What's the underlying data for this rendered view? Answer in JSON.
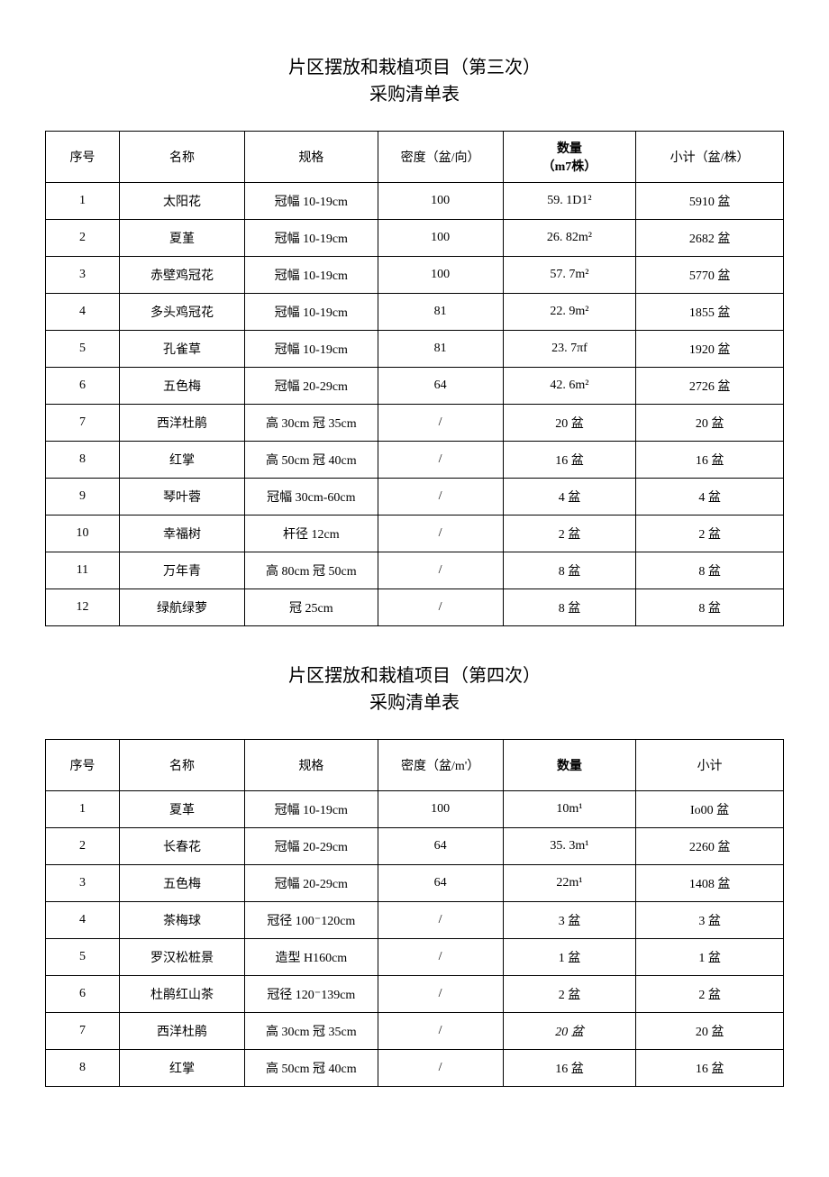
{
  "table1": {
    "title_line1": "片区摆放和栽植项目（第三次）",
    "title_line2": "采购清单表",
    "headers": {
      "seq": "序号",
      "name": "名称",
      "spec": "规格",
      "density": "密度（盆/向）",
      "qty_line1": "数量",
      "qty_line2": "（m7株）",
      "subtotal": "小计（盆/株）"
    },
    "rows": [
      {
        "seq": "1",
        "name": "太阳花",
        "spec": "冠幅 10-19cm",
        "density": "100",
        "qty": "59. 1D1²",
        "subtotal": "5910 盆"
      },
      {
        "seq": "2",
        "name": "夏堇",
        "spec": "冠幅 10-19cm",
        "density": "100",
        "qty": "26. 82m²",
        "subtotal": "2682 盆"
      },
      {
        "seq": "3",
        "name": "赤壁鸡冠花",
        "spec": "冠幅 10-19cm",
        "density": "100",
        "qty": "57. 7m²",
        "subtotal": "5770 盆"
      },
      {
        "seq": "4",
        "name": "多头鸡冠花",
        "spec": "冠幅 10-19cm",
        "density": "81",
        "qty": "22. 9m²",
        "subtotal": "1855 盆"
      },
      {
        "seq": "5",
        "name": "孔雀草",
        "spec": "冠幅 10-19cm",
        "density": "81",
        "qty": "23. 7πf",
        "subtotal": "1920 盆"
      },
      {
        "seq": "6",
        "name": "五色梅",
        "spec": "冠幅 20-29cm",
        "density": "64",
        "qty": "42. 6m²",
        "subtotal": "2726 盆"
      },
      {
        "seq": "7",
        "name": "西洋杜鹃",
        "spec": "高 30cm 冠 35cm",
        "density": "/",
        "qty": "20 盆",
        "subtotal": "20 盆"
      },
      {
        "seq": "8",
        "name": "红掌",
        "spec": "高 50cm 冠 40cm",
        "density": "/",
        "qty": "16 盆",
        "subtotal": "16 盆"
      },
      {
        "seq": "9",
        "name": "琴叶蓉",
        "spec": "冠幅 30cm-60cm",
        "density": "/",
        "qty": "4 盆",
        "subtotal": "4 盆"
      },
      {
        "seq": "10",
        "name": "幸福树",
        "spec": "杆径 12cm",
        "density": "/",
        "qty": "2 盆",
        "subtotal": "2 盆"
      },
      {
        "seq": "11",
        "name": "万年青",
        "spec": "高 80cm 冠 50cm",
        "density": "/",
        "qty": "8 盆",
        "subtotal": "8 盆"
      },
      {
        "seq": "12",
        "name": "绿航绿萝",
        "spec": "冠 25cm",
        "density": "/",
        "qty": "8 盆",
        "subtotal": "8 盆"
      }
    ]
  },
  "table2": {
    "title_line1": "片区摆放和栽植项目（第四次）",
    "title_line2": "采购清单表",
    "headers": {
      "seq": "序号",
      "name": "名称",
      "spec": "规格",
      "density": "密度（盆/m'）",
      "qty": "数量",
      "subtotal": "小计"
    },
    "rows": [
      {
        "seq": "1",
        "name": "夏革",
        "spec": "冠幅 10-19cm",
        "density": "100",
        "qty": "10m¹",
        "subtotal": "Io00 盆",
        "italic": false
      },
      {
        "seq": "2",
        "name": "长春花",
        "spec": "冠幅 20-29cm",
        "density": "64",
        "qty": "35. 3m¹",
        "subtotal": "2260 盆",
        "italic": false
      },
      {
        "seq": "3",
        "name": "五色梅",
        "spec": "冠幅 20-29cm",
        "density": "64",
        "qty": "22m¹",
        "subtotal": "1408 盆",
        "italic": false
      },
      {
        "seq": "4",
        "name": "茶梅球",
        "spec": "冠径 100⁻120cm",
        "density": "/",
        "qty": "3 盆",
        "subtotal": "3 盆",
        "italic": false
      },
      {
        "seq": "5",
        "name": "罗汉松桩景",
        "spec": "造型 H160cm",
        "density": "/",
        "qty": "1 盆",
        "subtotal": "1 盆",
        "italic": false
      },
      {
        "seq": "6",
        "name": "杜鹃红山茶",
        "spec": "冠径 120⁻139cm",
        "density": "/",
        "qty": "2 盆",
        "subtotal": "2 盆",
        "italic": false
      },
      {
        "seq": "7",
        "name": "西洋杜鹃",
        "spec": "高 30cm 冠 35cm",
        "density": "/",
        "qty": "20 盆",
        "subtotal": "20 盆",
        "italic": true
      },
      {
        "seq": "8",
        "name": "红掌",
        "spec": "高 50cm 冠 40cm",
        "density": "/",
        "qty": "16 盆",
        "subtotal": "16 盆",
        "italic": false
      }
    ]
  }
}
